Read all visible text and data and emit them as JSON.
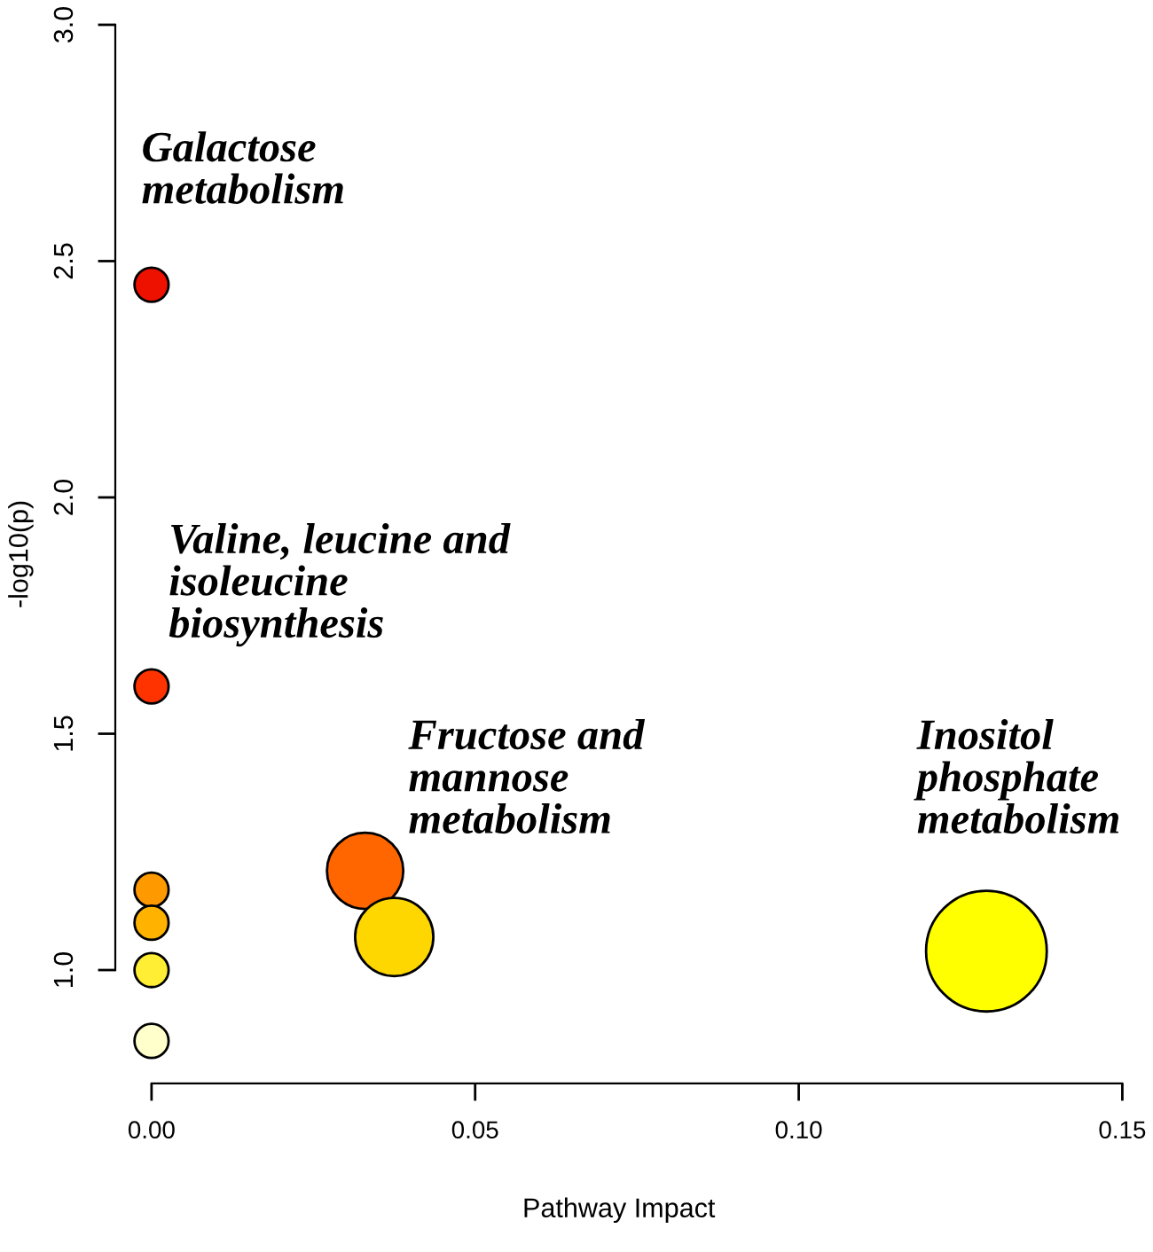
{
  "chart_data": {
    "type": "bubble",
    "xlabel": "Pathway Impact",
    "ylabel": "-log10(p)",
    "x": [
      0,
      0,
      0,
      0,
      0,
      0,
      0.033,
      0.0375,
      0.129
    ],
    "values": [
      2.45,
      1.6,
      1.17,
      1.1,
      1.0,
      0.85,
      1.21,
      1.07,
      1.04
    ],
    "sizes": [
      0.08,
      0.08,
      0.08,
      0.08,
      0.08,
      0.08,
      0.4,
      0.42,
      1
    ],
    "colors": [
      "#ee1100",
      "#ff3300",
      "#ff9900",
      "#ffb300",
      "#ffee33",
      "#ffffcc",
      "#ff6600",
      "#ffd700",
      "#ffff00"
    ],
    "xlim": [
      -0.0056,
      0.15
    ],
    "ylim": [
      0.76,
      3.0
    ],
    "xticks": [
      {
        "value": 0,
        "label": "0.00"
      },
      {
        "value": 0.05,
        "label": "0.05"
      },
      {
        "value": 0.1,
        "label": "0.10"
      },
      {
        "value": 0.15,
        "label": "0.15"
      }
    ],
    "yticks": [
      {
        "value": 1,
        "label": "1.0"
      },
      {
        "value": 1.5,
        "label": "1.5"
      },
      {
        "value": 2,
        "label": "2.0"
      },
      {
        "value": 2.5,
        "label": "2.5"
      },
      {
        "value": 3,
        "label": "3.0"
      }
    ],
    "grid": false,
    "legend": false,
    "annotations": [
      "Galactose\nmetabolism",
      "Valine, leucine and\nisoleucine\nbiosynthesis",
      "Fructose and\nmannose\nmetabolism",
      "Inositol\nphosphate\nmetabolism"
    ]
  }
}
